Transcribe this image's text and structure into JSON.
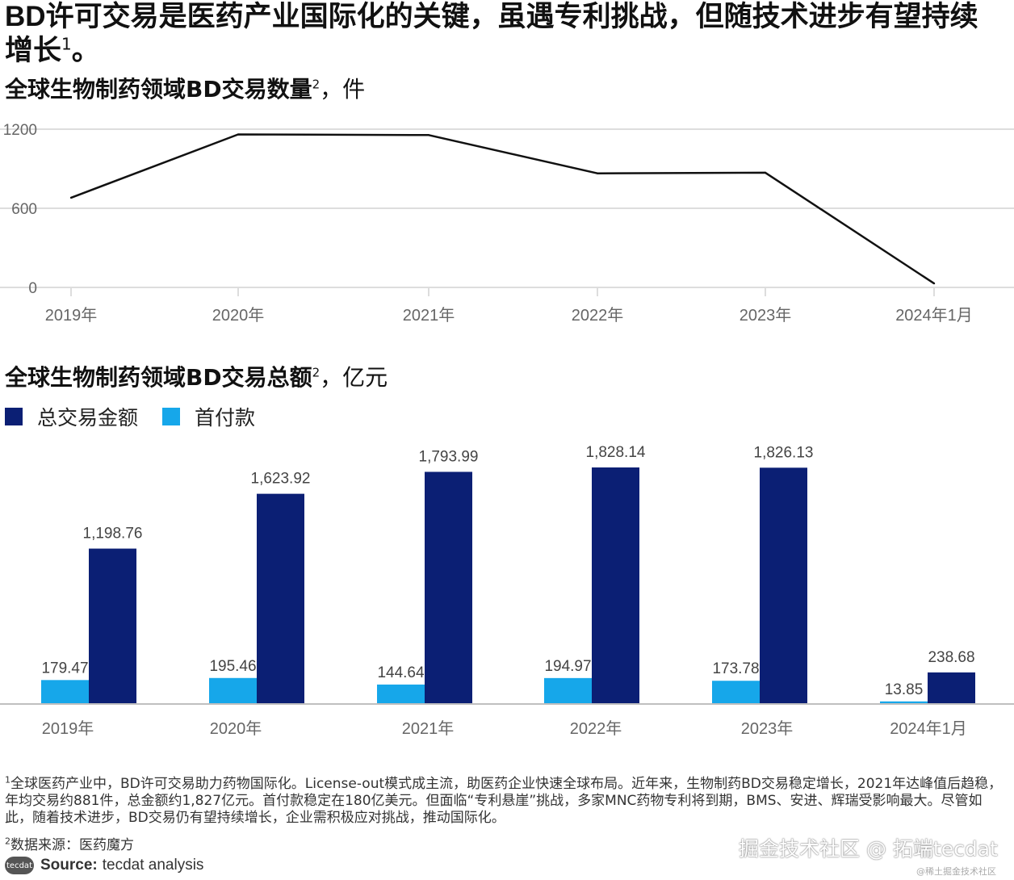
{
  "headline": {
    "text_a": "BD",
    "text_b": "许可交易是医药产业国际化的关键，虽遇专利挑战，但随技术进步有望持续增长",
    "sup": "1",
    "end": "。"
  },
  "line_title": {
    "strong": "全球生物制药领域BD交易数量",
    "sup": "2",
    "rest": "，件"
  },
  "bar_title": {
    "strong": "全球生物制药领域BD交易总额",
    "sup": "2",
    "rest": "，亿元"
  },
  "colors": {
    "total": "#0b1f74",
    "upfront": "#16a7ea",
    "line": "#111111",
    "grid": "#bbbbbb",
    "tick_text": "#666666"
  },
  "chart_data": [
    {
      "type": "line",
      "title": "全球生物制药领域BD交易数量，件",
      "categories": [
        "2019年",
        "2020年",
        "2021年",
        "2022年",
        "2023年",
        "2024年1月"
      ],
      "y_ticks": [
        "1200",
        "600",
        "0"
      ],
      "ylim": [
        0,
        1200
      ],
      "series": [
        {
          "values": [
            680,
            1160,
            1155,
            865,
            870,
            30
          ]
        }
      ],
      "grid": true
    },
    {
      "type": "bar",
      "title": "全球生物制药领域BD交易总额，亿元",
      "categories": [
        "2019年",
        "2020年",
        "2021年",
        "2022年",
        "2023年",
        "2024年1月"
      ],
      "legend_position": "top-left",
      "series": [
        {
          "name": "首付款",
          "values": [
            179.47,
            195.46,
            144.64,
            194.97,
            173.78,
            13.85
          ],
          "labels": [
            "179.47",
            "195.46",
            "144.64",
            "194.97",
            "173.78",
            "13.85"
          ]
        },
        {
          "name": "总交易金额",
          "values": [
            1198.76,
            1623.92,
            1793.99,
            1828.14,
            1826.13,
            238.68
          ],
          "labels": [
            "1,198.76",
            "1,623.92",
            "1,793.99",
            "1,828.14",
            "1,826.13",
            "238.68"
          ]
        }
      ]
    }
  ],
  "legend": {
    "total_label": "总交易金额",
    "upfront_label": "首付款"
  },
  "footnote1": {
    "sup": "1",
    "text": "全球医药产业中，BD许可交易助力药物国际化。License-out模式成主流，助医药企业快速全球布局。近年来，生物制药BD交易稳定增长，2021年达峰值后趋稳，年均交易约881件，总金额约1,827亿元。首付款稳定在180亿美元。但面临“专利悬崖”挑战，多家MNC药物专利将到期，BMS、安进、辉瑞受影响最大。尽管如此，随着技术进步，BD交易仍有望持续增长，企业需积极应对挑战，推动国际化。"
  },
  "footnote2": {
    "sup": "2",
    "text": "数据来源：医药魔方"
  },
  "source": {
    "logo": "tecdat",
    "label": "Source:",
    "value": "tecdat analysis"
  },
  "watermark": {
    "main": "掘金技术社区 @ 拓端tecdat",
    "small": "@稀土掘金技术社区"
  }
}
